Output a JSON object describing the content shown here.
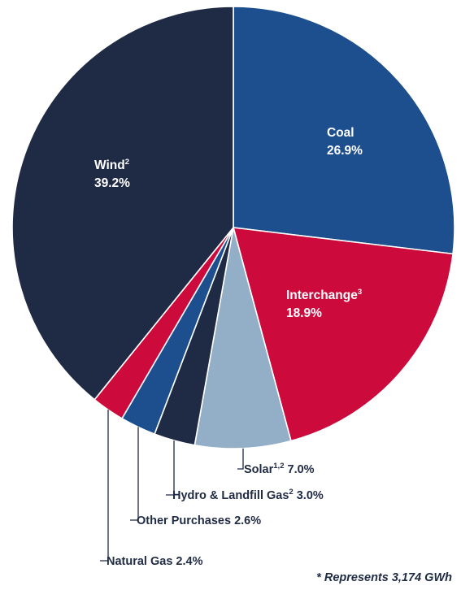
{
  "chart_data": {
    "type": "pie",
    "start_angle_deg": 0,
    "direction": "clockwise",
    "slices": [
      {
        "key": "coal",
        "name": "Coal",
        "sup": "",
        "value": 26.9,
        "display": "26.9%",
        "color": "#1d4f8f",
        "label_style": "inside"
      },
      {
        "key": "interchange",
        "name": "Interchange",
        "sup": "3",
        "value": 18.9,
        "display": "18.9%",
        "color": "#cc0a3c",
        "label_style": "inside"
      },
      {
        "key": "solar",
        "name": "Solar",
        "sup": "1,2",
        "value": 7.0,
        "display": "7.0%",
        "color": "#93afc7",
        "label_style": "leader"
      },
      {
        "key": "hydro-landfill-gas",
        "name": "Hydro & Landfill Gas",
        "sup": "2",
        "value": 3.0,
        "display": "3.0%",
        "color": "#1f2a44",
        "label_style": "leader"
      },
      {
        "key": "other-purchases",
        "name": "Other Purchases",
        "sup": "",
        "value": 2.6,
        "display": "2.6%",
        "color": "#1d4f8f",
        "label_style": "leader"
      },
      {
        "key": "natural-gas",
        "name": "Natural Gas",
        "sup": "",
        "value": 2.4,
        "display": "2.4%",
        "color": "#cc0a3c",
        "label_style": "leader"
      },
      {
        "key": "wind",
        "name": "Wind",
        "sup": "2",
        "value": 39.2,
        "display": "39.2%",
        "color": "#1f2a44",
        "label_style": "inside"
      }
    ],
    "note": "* Represents 3,174 GWh"
  }
}
